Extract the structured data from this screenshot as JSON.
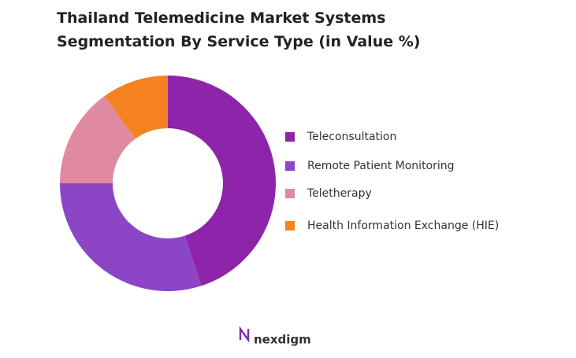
{
  "chart_data": {
    "type": "pie",
    "donut": true,
    "title": "Thailand Telemedicine Market Systems Segmentation By Service Type (in Value %)",
    "categories": [
      "Teleconsultation",
      "Remote Patient Monitoring",
      "Teletherapy",
      "Health Information Exchange (HIE)"
    ],
    "values": [
      45,
      30,
      15,
      10
    ],
    "colors": [
      "#8e24aa",
      "#8c45c4",
      "#df8aa0",
      "#f58220"
    ],
    "legend": "right"
  },
  "footer": {
    "logo": "nexdigm"
  }
}
